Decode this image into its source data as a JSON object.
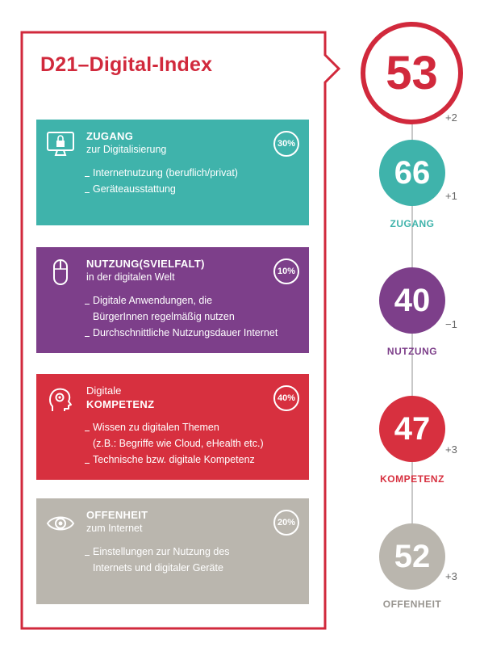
{
  "title": "D21–Digital-Index",
  "index": {
    "value": "53",
    "delta": "+2",
    "color": "#d1293c"
  },
  "categories": [
    {
      "id": "zugang",
      "icon": "monitor-lock-icon",
      "head1": "ZUGANG",
      "head2": "zur Digitalisierung",
      "weight": "30%",
      "bullets": [
        "Internetnutzung (beruflich/privat)",
        "Geräteausstattung"
      ],
      "score": "66",
      "delta": "+1",
      "label": "ZUGANG",
      "color": "#3fb3ab"
    },
    {
      "id": "nutzung",
      "icon": "mouse-icon",
      "head1": "NUTZUNG(SVIELFALT)",
      "head2": "in der digitalen Welt",
      "weight": "10%",
      "bullets": [
        "Digitale Anwendungen, die",
        "BürgerInnen regelmäßig nutzen",
        "Durchschnittliche Nutzungsdauer Internet"
      ],
      "score": "40",
      "delta": "−1",
      "label": "NUTZUNG",
      "color": "#7d3f8a"
    },
    {
      "id": "kompetenz",
      "icon": "head-gear-icon",
      "head1": "Digitale",
      "head2": "KOMPETENZ",
      "weight": "40%",
      "bullets": [
        "Wissen zu digitalen Themen",
        "(z.B.: Begriffe wie Cloud, eHealth etc.)",
        "Technische bzw. digitale Kompetenz"
      ],
      "score": "47",
      "delta": "+3",
      "label": "KOMPETENZ",
      "color": "#d7303f"
    },
    {
      "id": "offenheit",
      "icon": "eye-icon",
      "head1": "OFFENHEIT",
      "head2": "zum Internet",
      "weight": "20%",
      "bullets": [
        "Einstellungen zur Nutzung des",
        "Internets und digitaler Geräte"
      ],
      "score": "52",
      "delta": "+3",
      "label": "OFFENHEIT",
      "color": "#bab6ae"
    }
  ]
}
